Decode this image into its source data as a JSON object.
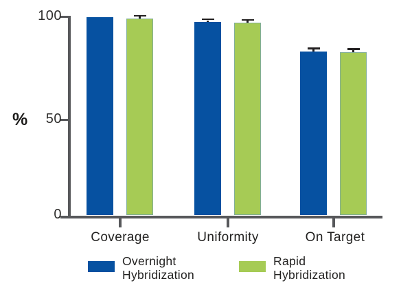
{
  "chart_data": {
    "type": "bar",
    "title": "",
    "xlabel": "",
    "ylabel": "%",
    "ylim": [
      0,
      100
    ],
    "yticks": [
      0,
      50,
      100
    ],
    "grid": false,
    "legend_position": "bottom",
    "categories": [
      "Coverage",
      "Uniformity",
      "On Target"
    ],
    "series": [
      {
        "name": "Overnight Hybridization",
        "color": "#0651a1",
        "values": [
          99.8,
          97.2,
          82.5
        ],
        "errors": [
          0,
          0.9,
          0.9
        ]
      },
      {
        "name": "Rapid Hybridization",
        "color": "#a6cb55",
        "values": [
          99.0,
          96.9,
          82.2
        ],
        "errors": [
          0.9,
          0.9,
          0.9
        ]
      }
    ],
    "error_bar_color": "#221f20",
    "axis_color": "#57585b"
  }
}
